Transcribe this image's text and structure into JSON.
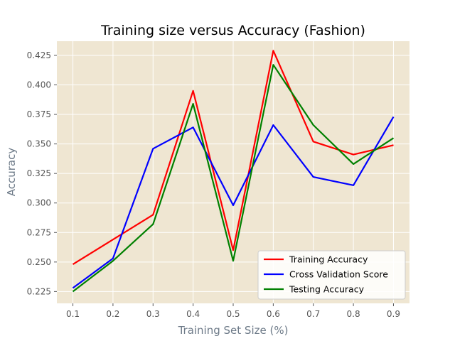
{
  "chart_data": {
    "type": "line",
    "title": "Training size versus Accuracy (Fashion)",
    "xlabel": "Training Set Size (%)",
    "ylabel": "Accuracy",
    "x": [
      0.1,
      0.2,
      0.3,
      0.4,
      0.5,
      0.6,
      0.7,
      0.8,
      0.9
    ],
    "x_ticks": [
      "0.1",
      "0.2",
      "0.3",
      "0.4",
      "0.5",
      "0.6",
      "0.7",
      "0.8",
      "0.9"
    ],
    "y_ticks": [
      "0.225",
      "0.250",
      "0.275",
      "0.300",
      "0.325",
      "0.350",
      "0.375",
      "0.400",
      "0.425"
    ],
    "xlim": [
      0.06,
      0.94
    ],
    "ylim": [
      0.215,
      0.437
    ],
    "grid": true,
    "legend_position": "lower-right",
    "series": [
      {
        "name": "Training Accuracy",
        "color": "#ff0000",
        "values": [
          0.248,
          0.269,
          0.29,
          0.395,
          0.26,
          0.429,
          0.352,
          0.341,
          0.349
        ]
      },
      {
        "name": "Cross Validation Score",
        "color": "#0000ff",
        "values": [
          0.228,
          0.253,
          0.346,
          0.364,
          0.298,
          0.366,
          0.322,
          0.315,
          0.373
        ]
      },
      {
        "name": "Testing Accuracy",
        "color": "#008000",
        "values": [
          0.225,
          0.251,
          0.282,
          0.384,
          0.251,
          0.417,
          0.366,
          0.333,
          0.355
        ]
      }
    ]
  },
  "colors": {
    "plot_background": "#efe6d2",
    "grid": "#ffffff"
  }
}
